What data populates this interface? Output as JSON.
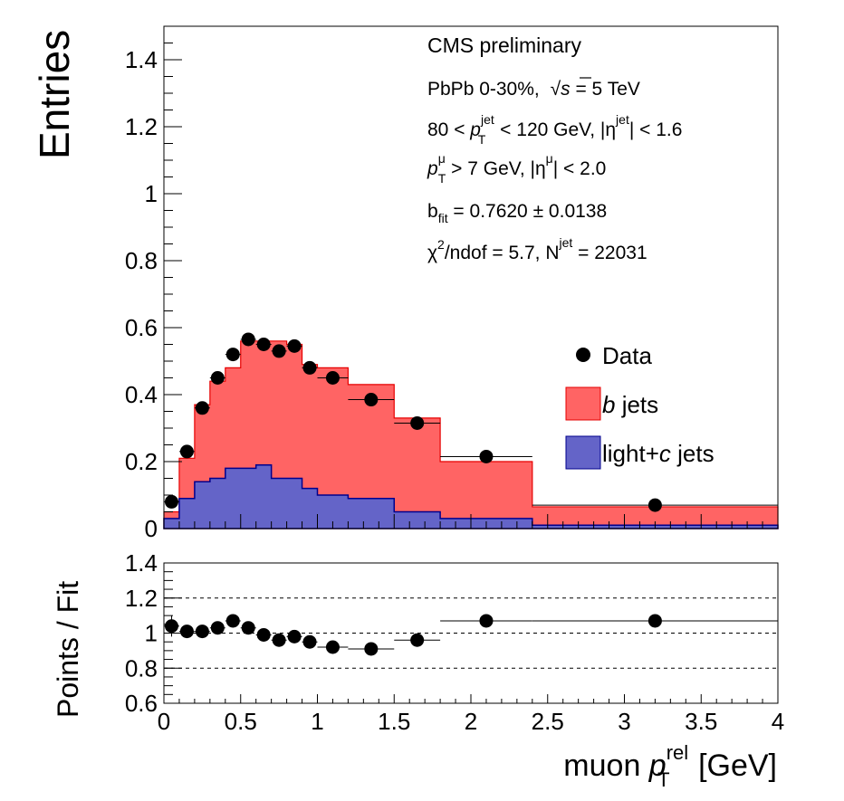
{
  "chart_data": [
    {
      "type": "bar",
      "panel": "main",
      "ylabel": "Entries",
      "ylim": [
        0,
        1.5
      ],
      "xlim": [
        0,
        4
      ],
      "yticks": [
        "0",
        "0.2",
        "0.4",
        "0.6",
        "0.8",
        "1",
        "1.2",
        "1.4"
      ],
      "ytick_values": [
        0,
        0.2,
        0.4,
        0.6,
        0.8,
        1.0,
        1.2,
        1.4
      ],
      "colors": {
        "b": "#ff6464",
        "b_edge": "#e60000",
        "lc": "#6464c8",
        "lc_edge": "#00008c",
        "data": "#000000"
      },
      "bin_edges": [
        0,
        0.1,
        0.2,
        0.3,
        0.4,
        0.5,
        0.6,
        0.7,
        0.8,
        0.9,
        1.0,
        1.2,
        1.5,
        1.8,
        2.4,
        4.0
      ],
      "stack_total": [
        0.05,
        0.21,
        0.37,
        0.44,
        0.48,
        0.56,
        0.56,
        0.56,
        0.55,
        0.49,
        0.48,
        0.43,
        0.33,
        0.2,
        0.065
      ],
      "light_c": [
        0.03,
        0.09,
        0.14,
        0.15,
        0.18,
        0.18,
        0.19,
        0.15,
        0.15,
        0.12,
        0.1,
        0.09,
        0.05,
        0.03,
        0.01
      ],
      "data_points": {
        "x": [
          0.05,
          0.15,
          0.25,
          0.35,
          0.45,
          0.55,
          0.65,
          0.75,
          0.85,
          0.95,
          1.1,
          1.35,
          1.65,
          2.1,
          3.2
        ],
        "xerr": [
          0.05,
          0.05,
          0.05,
          0.05,
          0.05,
          0.05,
          0.05,
          0.05,
          0.05,
          0.05,
          0.1,
          0.15,
          0.15,
          0.3,
          0.8
        ],
        "y": [
          0.08,
          0.23,
          0.36,
          0.45,
          0.52,
          0.565,
          0.55,
          0.53,
          0.545,
          0.48,
          0.45,
          0.385,
          0.315,
          0.215,
          0.07
        ]
      },
      "legend": {
        "position": "right",
        "entries": [
          {
            "label": "Data",
            "italic": "",
            "kind": "marker"
          },
          {
            "label": " jets",
            "italic": "b",
            "kind": "b"
          },
          {
            "label": "light+",
            "italic": "c",
            "suffix": " jets",
            "kind": "lc"
          }
        ]
      },
      "annotations": {
        "line1": "CMS preliminary",
        "line2_a": "PbPb 0-30%,",
        "line2_sqrt": "√",
        "line2_s": "s",
        "line2_b": " = 5 TeV",
        "line3_a": "80 < ",
        "line3_p": "p",
        "line3_sub": "T",
        "line3_sup": "jet",
        "line3_b": " < 120 GeV, |η",
        "line3_sup2": "jet",
        "line3_c": "| < 1.6",
        "line4_p": "p",
        "line4_sub": "T",
        "line4_sup": "μ",
        "line4_a": " > 7 GeV, |η",
        "line4_sup2": "μ",
        "line4_b": "| < 2.0",
        "line5_a": "b",
        "line5_sub": "fit",
        "line5_b": " = 0.7620 ± 0.0138",
        "line6_a": "χ",
        "line6_sup": "2",
        "line6_b": "/ndof = 5.7, N",
        "line6_sup2": "jet",
        "line6_c": " = 22031"
      }
    },
    {
      "type": "scatter",
      "panel": "ratio",
      "ylabel": "Points / Fit",
      "ylim": [
        0.6,
        1.4
      ],
      "xlim": [
        0,
        4
      ],
      "yticks": [
        "0.6",
        "0.8",
        "1",
        "1.2",
        "1.4"
      ],
      "ytick_values": [
        0.6,
        0.8,
        1.0,
        1.2,
        1.4
      ],
      "xticks": [
        "0",
        "0.5",
        "1",
        "1.5",
        "2",
        "2.5",
        "3",
        "3.5",
        "4"
      ],
      "xtick_values": [
        0,
        0.5,
        1.0,
        1.5,
        2.0,
        2.5,
        3.0,
        3.5,
        4.0
      ],
      "reference_lines": [
        0.8,
        1.0,
        1.2
      ],
      "x": [
        0.05,
        0.15,
        0.25,
        0.35,
        0.45,
        0.55,
        0.65,
        0.75,
        0.85,
        0.95,
        1.1,
        1.35,
        1.65,
        2.1,
        3.2
      ],
      "xerr": [
        0.05,
        0.05,
        0.05,
        0.05,
        0.05,
        0.05,
        0.05,
        0.05,
        0.05,
        0.05,
        0.1,
        0.15,
        0.15,
        0.3,
        0.8
      ],
      "y": [
        1.04,
        1.01,
        1.01,
        1.03,
        1.07,
        1.03,
        0.99,
        0.96,
        0.98,
        0.95,
        0.92,
        0.91,
        0.96,
        1.07,
        1.07
      ],
      "yerr": [
        0.06,
        0.03,
        0.02,
        0.02,
        0.02,
        0.02,
        0.02,
        0.02,
        0.02,
        0.02,
        0.02,
        0.02,
        0.02,
        0.02,
        0.02
      ],
      "xlabel_a": "muon ",
      "xlabel_p": "p",
      "xlabel_sub": "T",
      "xlabel_sup": "rel",
      "xlabel_b": " [GeV]"
    }
  ]
}
